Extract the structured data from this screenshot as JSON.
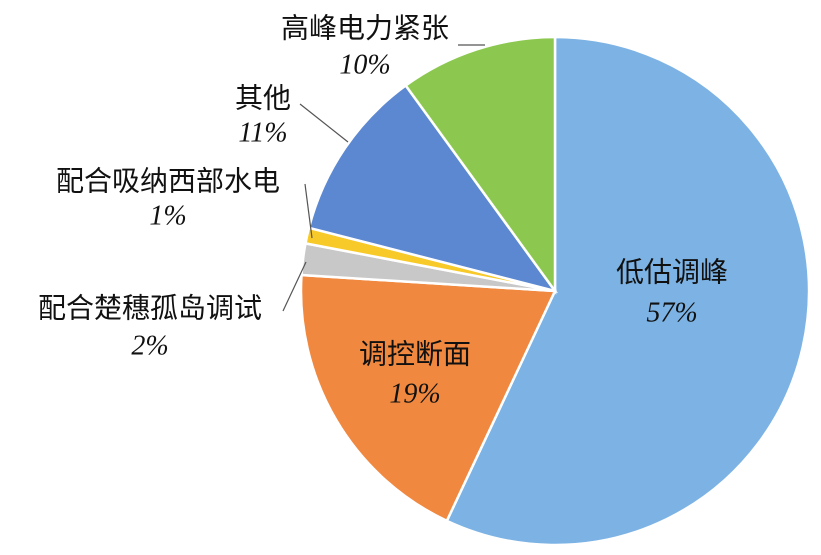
{
  "chart_data": {
    "type": "pie",
    "categories": [
      "低估调峰",
      "调控断面",
      "配合楚穗孤岛调试",
      "配合吸纳西部水电",
      "其他",
      "高峰电力紧张"
    ],
    "values": [
      57,
      19,
      2,
      1,
      11,
      10
    ],
    "value_labels": [
      "57%",
      "19%",
      "2%",
      "1%",
      "11%",
      "10%"
    ],
    "colors": [
      "#7cb3e4",
      "#f0883f",
      "#c8c8c8",
      "#f7ca2a",
      "#5b88d1",
      "#8cc84f"
    ]
  }
}
